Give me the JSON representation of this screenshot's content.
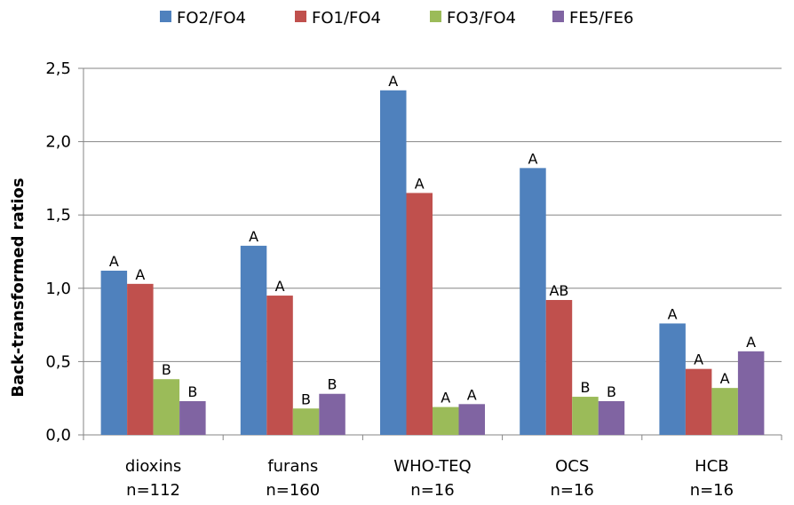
{
  "chart_data": {
    "type": "bar",
    "ylabel": "Back-transformed ratios",
    "ylim": [
      0,
      2.5
    ],
    "yticks": [
      "0,0",
      "0,5",
      "1,0",
      "1,5",
      "2,0",
      "2,5"
    ],
    "ytick_values": [
      0,
      0.5,
      1.0,
      1.5,
      2.0,
      2.5
    ],
    "grid": true,
    "legend_position": "top",
    "categories": [
      {
        "label": "dioxins",
        "n": "n=112"
      },
      {
        "label": "furans",
        "n": "n=160"
      },
      {
        "label": "WHO-TEQ",
        "n": "n=16"
      },
      {
        "label": "OCS",
        "n": "n=16"
      },
      {
        "label": "HCB",
        "n": "n=16"
      }
    ],
    "series": [
      {
        "name": "FO2/FO4",
        "color": "#4f81bd",
        "values": [
          1.12,
          1.29,
          2.35,
          1.82,
          0.76
        ],
        "sig": [
          "A",
          "A",
          "A",
          "A",
          "A"
        ]
      },
      {
        "name": "FO1/FO4",
        "color": "#c0504d",
        "values": [
          1.03,
          0.95,
          1.65,
          0.92,
          0.45
        ],
        "sig": [
          "A",
          "A",
          "A",
          "AB",
          "A"
        ]
      },
      {
        "name": "FO3/FO4",
        "color": "#9bbb59",
        "values": [
          0.38,
          0.18,
          0.19,
          0.26,
          0.32
        ],
        "sig": [
          "B",
          "B",
          "A",
          "B",
          "A"
        ]
      },
      {
        "name": "FE5/FE6",
        "color": "#8064a2",
        "values": [
          0.23,
          0.28,
          0.21,
          0.23,
          0.57
        ],
        "sig": [
          "B",
          "B",
          "A",
          "B",
          "A"
        ]
      }
    ]
  }
}
